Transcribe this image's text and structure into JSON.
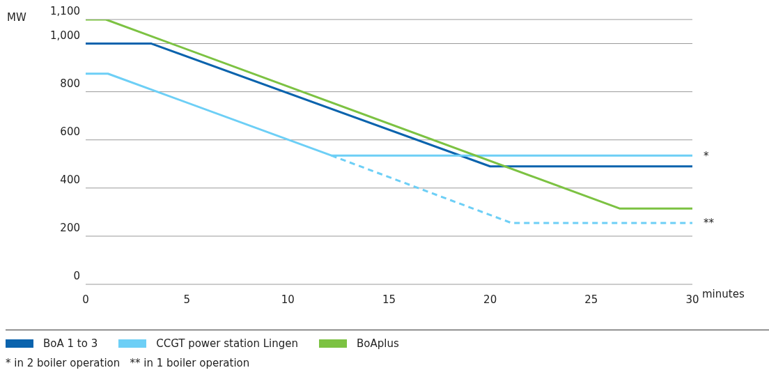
{
  "chart_data": {
    "type": "line",
    "ylabel": "MW",
    "xlabel": "minutes",
    "xlim": [
      0,
      30
    ],
    "xticks": [
      0,
      5,
      10,
      15,
      20,
      25,
      30
    ],
    "ylim": [
      0,
      1100
    ],
    "yticks": [
      0,
      200,
      400,
      600,
      800,
      {
        "value": 1000,
        "label": "1,000"
      },
      {
        "value": 1100,
        "label": "1,100"
      }
    ],
    "grid": "y",
    "legend": "bottom",
    "marker": "none",
    "series": [
      {
        "name": "BoA 1 to 3",
        "color": "#0a63ad",
        "x": [
          0,
          3.25,
          20,
          30
        ],
        "values": [
          1000,
          1000,
          490,
          490
        ],
        "line_style": "solid"
      },
      {
        "name": "CCGT power station Lingen",
        "color": "#6dcff6",
        "x": [
          0,
          1.1,
          12.15,
          30
        ],
        "values": [
          875,
          875,
          535,
          535
        ],
        "line_style": "solid"
      },
      {
        "color": "#6dcff6",
        "x": [
          12.15,
          21.05,
          30
        ],
        "values": [
          535,
          255,
          255
        ],
        "line_style": "dashed"
      },
      {
        "name": "BoAplus",
        "color": "#7cc242",
        "x": [
          0,
          1,
          26.4,
          30
        ],
        "values": [
          1100,
          1100,
          315,
          315
        ],
        "line_style": "solid"
      }
    ],
    "annotations": [
      {
        "text": "*",
        "x": 30,
        "y": 535
      },
      {
        "text": "**",
        "x": 30,
        "y": 255
      },
      "* in 2 boiler operation   ** in 1 boiler operation"
    ]
  }
}
